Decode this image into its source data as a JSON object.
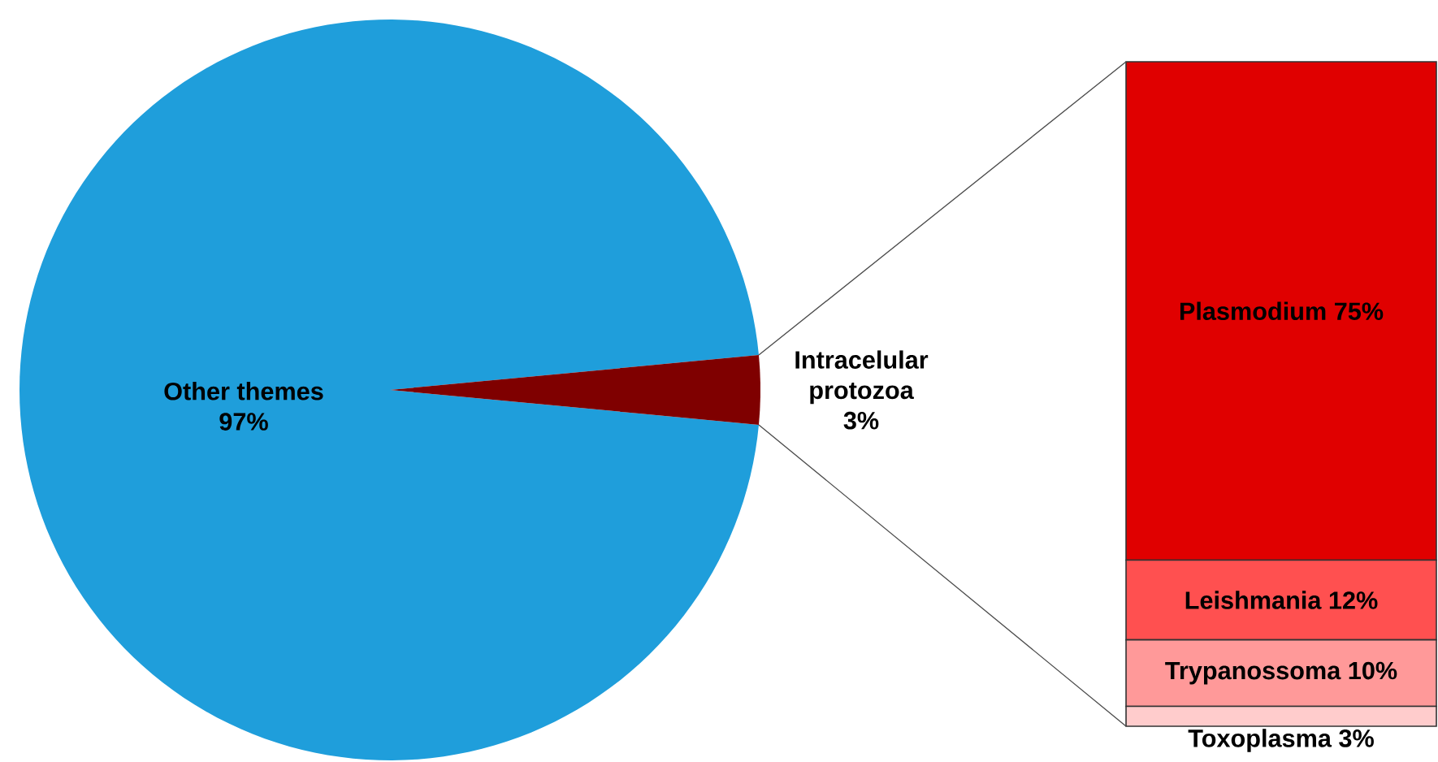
{
  "chart_data": [
    {
      "type": "pie",
      "categories": [
        "Other themes",
        "Intracelular protozoa"
      ],
      "values": [
        97,
        3
      ],
      "colors": [
        "#1f9edb",
        "#7f0000"
      ],
      "value_labels": [
        "97%",
        "3%"
      ]
    },
    {
      "type": "bar",
      "stacked": true,
      "categories": [
        null
      ],
      "series": [
        {
          "name": "Toxoplasma",
          "color": "#ffcccc",
          "values": [
            3
          ],
          "value_labels": [
            "3%"
          ]
        },
        {
          "name": "Trypanossoma",
          "color": "#ff9999",
          "values": [
            10
          ],
          "value_labels": [
            "10%"
          ]
        },
        {
          "name": "Leishmania",
          "color": "#ff5050",
          "values": [
            12
          ],
          "value_labels": [
            "12%"
          ]
        },
        {
          "name": "Plasmodium",
          "color": "#e00000",
          "values": [
            75
          ],
          "value_labels": [
            "75%"
          ]
        }
      ]
    }
  ]
}
